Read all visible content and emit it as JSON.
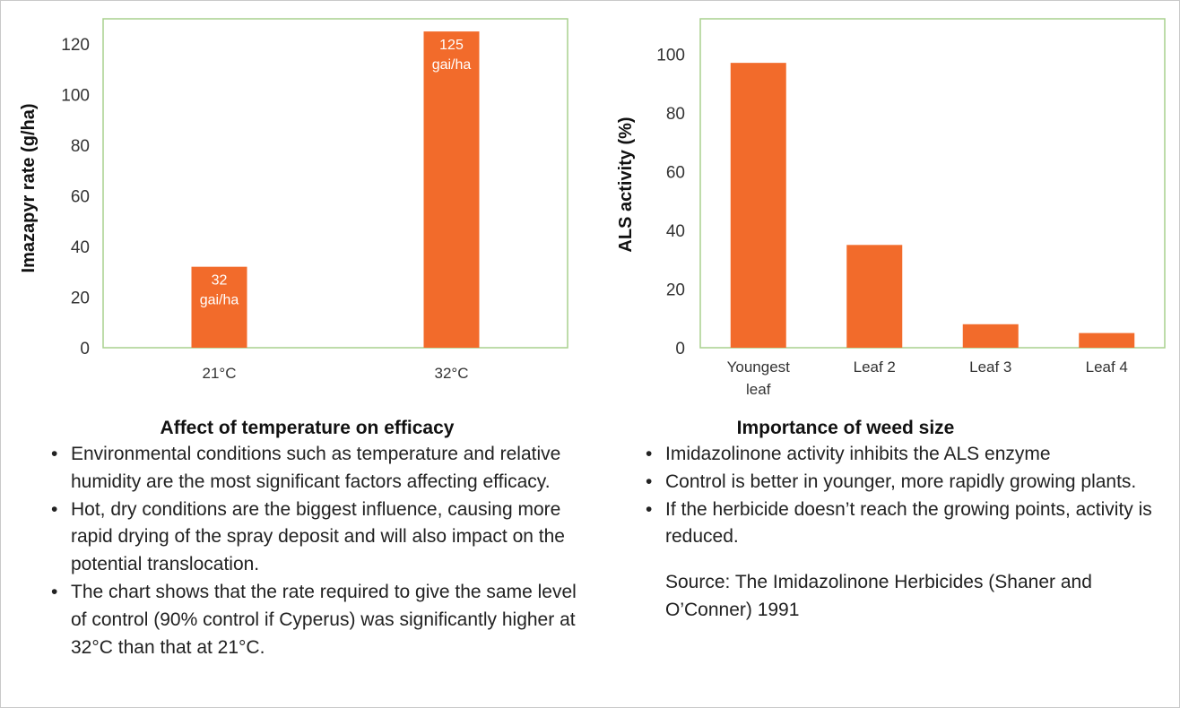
{
  "chart_data": [
    {
      "type": "bar",
      "categories": [
        "21°C",
        "32°C"
      ],
      "values": [
        32,
        125
      ],
      "data_labels": [
        [
          "32",
          "gai/ha"
        ],
        [
          "125",
          "gai/ha"
        ]
      ],
      "ylabel": "Imazapyr rate (g/ha)",
      "ylim": [
        0,
        130
      ],
      "yticks": [
        0,
        20,
        40,
        60,
        80,
        100,
        120
      ],
      "grid": false,
      "legend": "none"
    },
    {
      "type": "bar",
      "categories": [
        [
          "Youngest",
          "leaf"
        ],
        [
          "Leaf 2"
        ],
        [
          "Leaf 3"
        ],
        [
          "Leaf 4"
        ]
      ],
      "values": [
        97,
        35,
        8,
        5
      ],
      "ylabel": "ALS activity (%)",
      "ylim": [
        0,
        112
      ],
      "yticks": [
        0,
        20,
        40,
        60,
        80,
        100
      ],
      "grid": false,
      "legend": "none"
    }
  ],
  "colors": {
    "bar": "#f26b2b",
    "plot_border": "#a9d18e",
    "text": "#222222"
  },
  "left_panel": {
    "title": "Affect of temperature on efficacy",
    "bullets": [
      "Environmental conditions such as temperature and relative humidity are the most significant factors affecting efficacy.",
      "Hot, dry conditions are the biggest influence, causing more rapid drying of the spray deposit and will also impact on the potential translocation.",
      "The chart shows that the rate required to give the same level of control (90% control if Cyperus) was significantly higher at 32°C than that at 21°C."
    ]
  },
  "right_panel": {
    "title": "Importance of weed size",
    "bullets": [
      "Imidazolinone activity inhibits the ALS enzyme",
      "Control is better in younger, more rapidly growing plants.",
      "If the herbicide doesn’t reach the growing points, activity is reduced."
    ],
    "source": "Source: The Imidazolinone Herbicides (Shaner and O’Conner) 1991"
  }
}
